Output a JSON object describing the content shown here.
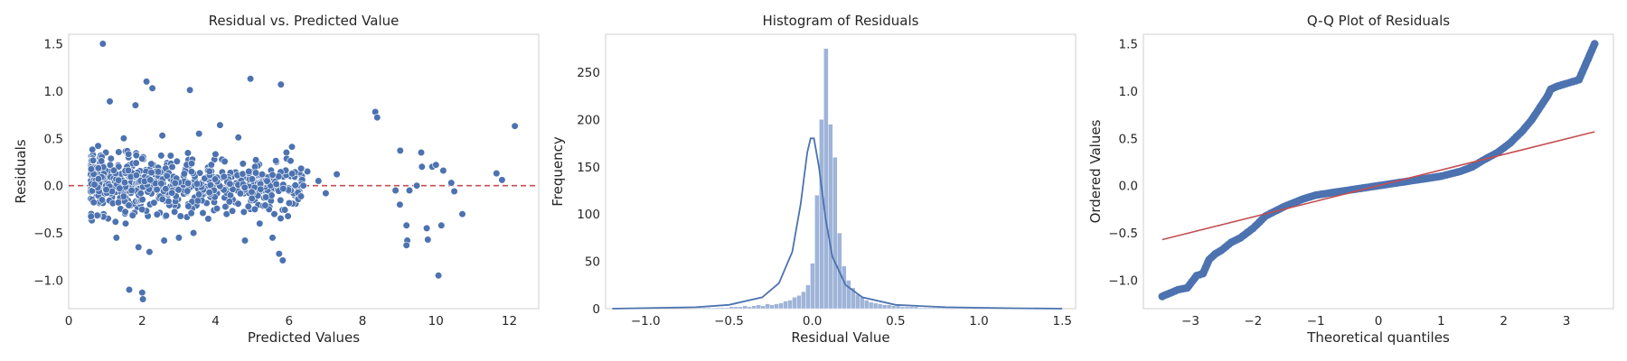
{
  "chart_data": [
    {
      "type": "scatter",
      "title": "Residual vs. Predicted Value",
      "xlabel": "Predicted Values",
      "ylabel": "Residuals",
      "xlim": [
        0,
        12.8
      ],
      "ylim": [
        -1.3,
        1.6
      ],
      "xticks": [
        0,
        2,
        4,
        6,
        8,
        10,
        12
      ],
      "yticks": [
        -1.0,
        -0.5,
        0.0,
        0.5,
        1.0,
        1.5
      ],
      "xtick_labels": [
        "0",
        "2",
        "4",
        "6",
        "8",
        "10",
        "12"
      ],
      "ytick_labels": [
        "−1.0",
        "−0.5",
        "0.0",
        "0.5",
        "1.0",
        "1.5"
      ],
      "grid": false,
      "point_color": "#4c72b0",
      "reference_line": {
        "y": 0,
        "color": "#c44e52",
        "style": "dashed"
      },
      "points": [
        [
          0.93,
          1.5
        ],
        [
          1.12,
          0.89
        ],
        [
          2.12,
          1.1
        ],
        [
          2.28,
          1.03
        ],
        [
          4.95,
          1.13
        ],
        [
          5.78,
          1.07
        ],
        [
          3.3,
          1.01
        ],
        [
          1.82,
          0.85
        ],
        [
          8.35,
          0.78
        ],
        [
          8.4,
          0.72
        ],
        [
          12.15,
          0.63
        ],
        [
          9.6,
          0.35
        ],
        [
          9.03,
          0.37
        ],
        [
          11.65,
          0.13
        ],
        [
          11.8,
          0.06
        ],
        [
          10.42,
          0.03
        ],
        [
          10.72,
          -0.3
        ],
        [
          10.15,
          -0.42
        ],
        [
          10.07,
          -0.95
        ],
        [
          9.75,
          -0.45
        ],
        [
          9.78,
          -0.57
        ],
        [
          9.22,
          -0.58
        ],
        [
          9.2,
          -0.63
        ],
        [
          9.2,
          -0.42
        ],
        [
          9.02,
          -0.2
        ],
        [
          8.9,
          -0.05
        ],
        [
          9.28,
          -0.05
        ],
        [
          9.48,
          0.0
        ],
        [
          9.62,
          0.2
        ],
        [
          9.9,
          0.2
        ],
        [
          10.0,
          0.22
        ],
        [
          10.2,
          0.16
        ],
        [
          10.5,
          -0.06
        ],
        [
          7.0,
          -0.08
        ],
        [
          7.3,
          0.12
        ],
        [
          6.5,
          0.15
        ],
        [
          6.35,
          0.1
        ],
        [
          6.8,
          0.05
        ],
        [
          5.73,
          -0.72
        ],
        [
          5.83,
          -0.79
        ],
        [
          5.55,
          -0.55
        ],
        [
          2.0,
          -1.13
        ],
        [
          2.02,
          -1.2
        ],
        [
          1.65,
          -1.1
        ],
        [
          1.9,
          -0.65
        ],
        [
          2.2,
          -0.7
        ],
        [
          3.0,
          -0.55
        ],
        [
          4.8,
          -0.58
        ],
        [
          4.12,
          0.64
        ],
        [
          4.62,
          0.51
        ],
        [
          6.08,
          0.41
        ],
        [
          5.93,
          0.35
        ],
        [
          2.55,
          0.53
        ],
        [
          1.5,
          0.5
        ],
        [
          3.55,
          0.55
        ],
        [
          0.8,
          0.42
        ],
        [
          0.85,
          0.25
        ],
        [
          0.95,
          -0.3
        ],
        [
          1.3,
          -0.55
        ],
        [
          1.55,
          -0.4
        ],
        [
          2.6,
          -0.58
        ],
        [
          3.4,
          -0.5
        ],
        [
          3.8,
          -0.35
        ],
        [
          4.3,
          -0.3
        ],
        [
          5.2,
          -0.4
        ],
        [
          5.6,
          -0.3
        ]
      ]
    },
    {
      "type": "histogram",
      "title": "Histogram of Residuals",
      "xlabel": "Residual Value",
      "ylabel": "Frequency",
      "xlim": [
        -1.24,
        1.58
      ],
      "ylim": [
        0,
        290
      ],
      "xticks": [
        -1.0,
        -0.5,
        0.0,
        0.5,
        1.0,
        1.5
      ],
      "yticks": [
        0,
        50,
        100,
        150,
        200,
        250
      ],
      "xtick_labels": [
        "−1.0",
        "−0.5",
        "0.0",
        "0.5",
        "1.0",
        "1.5"
      ],
      "ytick_labels": [
        "0",
        "50",
        "100",
        "150",
        "200",
        "250"
      ],
      "grid": false,
      "bar_color": "#9fb4d8",
      "kde_color": "#4c72b0",
      "bin_range": [
        -1.2,
        1.5
      ],
      "counts": [
        0,
        0,
        0,
        0,
        0,
        0,
        0,
        0,
        0,
        0,
        0,
        0,
        0,
        0,
        0,
        0,
        0,
        0,
        0,
        1,
        1,
        1,
        0,
        1,
        1,
        1,
        2,
        2,
        2,
        3,
        2,
        3,
        4,
        3,
        5,
        4,
        5,
        6,
        8,
        9,
        12,
        14,
        18,
        25,
        48,
        120,
        200,
        275,
        195,
        160,
        80,
        45,
        30,
        22,
        15,
        12,
        9,
        7,
        6,
        5,
        4,
        4,
        3,
        3,
        2,
        2,
        2,
        2,
        1,
        1,
        1,
        1,
        1,
        1,
        1,
        0,
        1,
        1,
        0,
        1,
        0,
        0,
        0,
        1,
        0,
        0,
        0,
        0,
        0,
        0,
        0,
        0,
        0,
        0,
        0,
        0,
        0,
        0,
        0,
        1
      ],
      "kde": [
        [
          -1.2,
          0
        ],
        [
          -0.7,
          1.5
        ],
        [
          -0.5,
          4
        ],
        [
          -0.3,
          12
        ],
        [
          -0.2,
          27
        ],
        [
          -0.12,
          60
        ],
        [
          -0.07,
          110
        ],
        [
          -0.03,
          165
        ],
        [
          -0.01,
          180
        ],
        [
          0.01,
          180
        ],
        [
          0.04,
          150
        ],
        [
          0.08,
          95
        ],
        [
          0.12,
          55
        ],
        [
          0.2,
          25
        ],
        [
          0.3,
          12
        ],
        [
          0.5,
          4
        ],
        [
          0.8,
          1.5
        ],
        [
          1.0,
          1
        ],
        [
          1.2,
          0.5
        ],
        [
          1.5,
          0
        ]
      ]
    },
    {
      "type": "scatter",
      "title": "Q-Q Plot of Residuals",
      "xlabel": "Theoretical quantiles",
      "ylabel": "Ordered Values",
      "xlim": [
        -3.75,
        3.75
      ],
      "ylim": [
        -1.3,
        1.6
      ],
      "xticks": [
        -3,
        -2,
        -1,
        0,
        1,
        2,
        3
      ],
      "yticks": [
        -1.0,
        -0.5,
        0.0,
        0.5,
        1.0,
        1.5
      ],
      "xtick_labels": [
        "−3",
        "−2",
        "−1",
        "0",
        "1",
        "2",
        "3"
      ],
      "ytick_labels": [
        "−1.0",
        "−0.5",
        "0.0",
        "0.5",
        "1.0",
        "1.5"
      ],
      "grid": false,
      "point_color": "#4c72b0",
      "fit_line": {
        "x": [
          -3.45,
          3.45
        ],
        "y": [
          -0.57,
          0.57
        ],
        "color": "#c44e52"
      },
      "qq_curve": [
        [
          -3.45,
          -1.17
        ],
        [
          -3.2,
          -1.1
        ],
        [
          -3.05,
          -1.08
        ],
        [
          -2.9,
          -0.95
        ],
        [
          -2.8,
          -0.93
        ],
        [
          -2.7,
          -0.78
        ],
        [
          -2.6,
          -0.72
        ],
        [
          -2.5,
          -0.68
        ],
        [
          -2.35,
          -0.6
        ],
        [
          -2.2,
          -0.55
        ],
        [
          -2.0,
          -0.45
        ],
        [
          -1.8,
          -0.32
        ],
        [
          -1.5,
          -0.22
        ],
        [
          -1.2,
          -0.14
        ],
        [
          -1.0,
          -0.1
        ],
        [
          -0.5,
          -0.05
        ],
        [
          0.0,
          0.0
        ],
        [
          0.5,
          0.05
        ],
        [
          1.0,
          0.1
        ],
        [
          1.3,
          0.15
        ],
        [
          1.5,
          0.2
        ],
        [
          1.7,
          0.28
        ],
        [
          1.9,
          0.35
        ],
        [
          2.1,
          0.45
        ],
        [
          2.3,
          0.58
        ],
        [
          2.45,
          0.7
        ],
        [
          2.6,
          0.85
        ],
        [
          2.7,
          0.95
        ],
        [
          2.75,
          1.02
        ],
        [
          2.85,
          1.05
        ],
        [
          3.0,
          1.08
        ],
        [
          3.1,
          1.1
        ],
        [
          3.2,
          1.12
        ],
        [
          3.45,
          1.5
        ]
      ]
    }
  ]
}
